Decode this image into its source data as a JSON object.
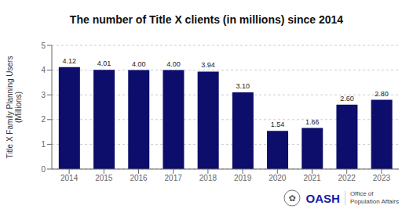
{
  "chart_data": {
    "type": "bar",
    "title": "The number of Title X clients (in millions) since 2014",
    "ylabel": "Title X Family Planning Users\n(Millions)",
    "categories": [
      "2014",
      "2015",
      "2016",
      "2017",
      "2018",
      "2019",
      "2020",
      "2021",
      "2022",
      "2023"
    ],
    "values": [
      4.12,
      4.01,
      4.0,
      4.0,
      3.94,
      3.1,
      1.54,
      1.66,
      2.6,
      2.8
    ],
    "value_labels": [
      "4.12",
      "4.01",
      "4.00",
      "4.00",
      "3.94",
      "3.10",
      "1.54",
      "1.66",
      "2.60",
      "2.80"
    ],
    "data_labels": true,
    "color": "#0d0d6b",
    "ylim": [
      0,
      5
    ],
    "yticks": [
      0,
      1,
      2,
      3,
      4,
      5
    ],
    "grid": true,
    "annotations": [
      "✿",
      "OASH",
      "Office of\nPopulation Affairs"
    ]
  }
}
